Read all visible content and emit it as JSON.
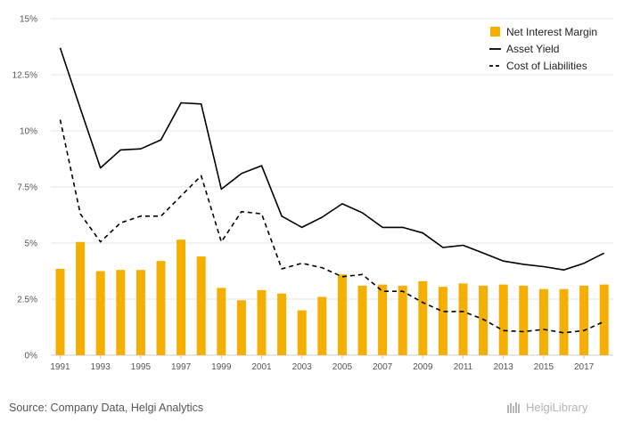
{
  "source_text": "Source: Company Data, Helgi Analytics",
  "brand_text": "HelgiLibrary",
  "colors": {
    "bar": "#F5AF00",
    "line": "#000000",
    "grid": "#e6e6e6",
    "axis": "#cccccc",
    "brand": "#b5b5b5"
  },
  "chart_data": {
    "type": "bar",
    "title": "",
    "xlabel": "",
    "ylabel": "",
    "ylim": [
      0,
      15
    ],
    "y_ticks": [
      {
        "value": 0,
        "label": "0%"
      },
      {
        "value": 2.5,
        "label": "2.5%"
      },
      {
        "value": 5,
        "label": "5%"
      },
      {
        "value": 7.5,
        "label": "7.5%"
      },
      {
        "value": 10,
        "label": "10%"
      },
      {
        "value": 12.5,
        "label": "12.5%"
      },
      {
        "value": 15,
        "label": "15%"
      }
    ],
    "x_tick_labels": [
      "1991",
      "1993",
      "1995",
      "1997",
      "1999",
      "2001",
      "2003",
      "2005",
      "2007",
      "2009",
      "2011",
      "2013",
      "2015",
      "2017"
    ],
    "categories": [
      "1991",
      "1992",
      "1993",
      "1994",
      "1995",
      "1996",
      "1997",
      "1998",
      "1999",
      "2000",
      "2001",
      "2002",
      "2003",
      "2004",
      "2005",
      "2006",
      "2007",
      "2008",
      "2009",
      "2010",
      "2011",
      "2012",
      "2013",
      "2014",
      "2015",
      "2016",
      "2017",
      "2018"
    ],
    "grid": true,
    "legend_position": "top-right",
    "series": [
      {
        "name": "Net Interest Margin",
        "kind": "bar",
        "values": [
          3.85,
          5.05,
          3.75,
          3.8,
          3.8,
          4.2,
          5.15,
          4.4,
          3.0,
          2.45,
          2.9,
          2.75,
          2.0,
          2.6,
          3.6,
          3.1,
          3.15,
          3.1,
          3.3,
          3.05,
          3.2,
          3.1,
          3.15,
          3.1,
          2.95,
          2.95,
          3.1,
          3.15
        ]
      },
      {
        "name": "Asset Yield",
        "kind": "line",
        "dash": "solid",
        "values": [
          13.7,
          11.0,
          8.35,
          9.15,
          9.2,
          9.6,
          11.25,
          11.2,
          7.4,
          8.1,
          8.45,
          6.2,
          5.7,
          6.15,
          6.75,
          6.35,
          5.7,
          5.7,
          5.45,
          4.8,
          4.9,
          4.55,
          4.2,
          4.05,
          3.95,
          3.8,
          4.1,
          4.55
        ]
      },
      {
        "name": "Cost of Liabilities",
        "kind": "line",
        "dash": "dashed",
        "values": [
          10.5,
          6.3,
          5.05,
          5.9,
          6.2,
          6.2,
          7.1,
          8.0,
          5.05,
          6.4,
          6.3,
          3.85,
          4.1,
          3.9,
          3.5,
          3.6,
          2.85,
          2.85,
          2.35,
          1.95,
          1.95,
          1.6,
          1.1,
          1.05,
          1.15,
          1.0,
          1.1,
          1.5
        ]
      }
    ]
  }
}
